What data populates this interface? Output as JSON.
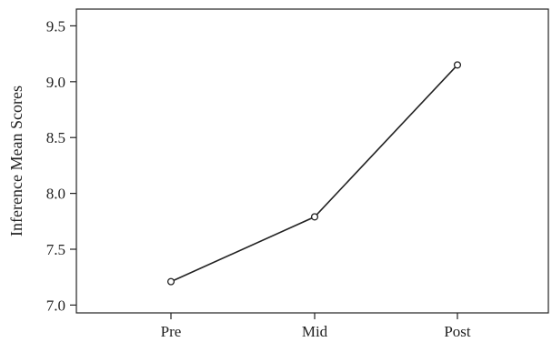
{
  "chart_data": {
    "type": "line",
    "title": "",
    "xlabel": "",
    "ylabel": "Inference Mean Scores",
    "categories": [
      "Pre",
      "Mid",
      "Post"
    ],
    "series": [
      {
        "values": [
          7.21,
          7.79,
          9.15
        ]
      }
    ],
    "ylim": [
      6.93,
      9.65
    ],
    "yticks": [
      7.0,
      7.5,
      8.0,
      8.5,
      9.0,
      9.5
    ],
    "ytick_labels": [
      "7.0",
      "7.5",
      "8.0",
      "8.5",
      "9.0",
      "9.5"
    ],
    "grid": false,
    "legend": "none",
    "marker": "open-circle",
    "colors": {
      "line": "#222222",
      "axis": "#222222",
      "background": "#ffffff"
    }
  }
}
